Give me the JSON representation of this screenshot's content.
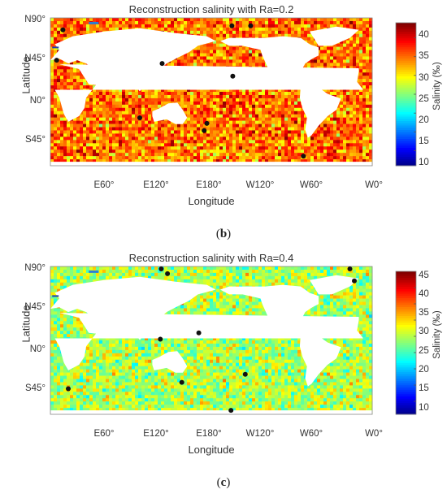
{
  "chart_data": [
    {
      "type": "heatmap",
      "panel_caption": "b",
      "title": "Reconstruction salinity with Ra=0.2",
      "xlabel": "Longitude",
      "ylabel": "Latitude",
      "x_ticks": [
        "E60°",
        "E120°",
        "E180°",
        "W120°",
        "W60°",
        "W0°"
      ],
      "y_ticks": [
        "N90°",
        "N45°",
        "N0°",
        "S45°"
      ],
      "colorbar": {
        "label": "Salinity (‰)",
        "ticks": [
          10,
          15,
          20,
          25,
          30,
          35,
          40
        ],
        "range": [
          6,
          44
        ]
      },
      "field": {
        "mean": 35,
        "spread": 3.5
      },
      "markers": [
        {
          "lon": 14,
          "lat": 80
        },
        {
          "lon": 7,
          "lat": 42
        },
        {
          "lon": 125,
          "lat": 38
        },
        {
          "lon": 203,
          "lat": 85
        },
        {
          "lon": 224,
          "lat": 85
        },
        {
          "lon": 204,
          "lat": 22
        },
        {
          "lon": 100,
          "lat": -30
        },
        {
          "lon": 175,
          "lat": -37
        },
        {
          "lon": 172,
          "lat": -46
        },
        {
          "lon": 283,
          "lat": -78
        }
      ]
    },
    {
      "type": "heatmap",
      "panel_caption": "c",
      "title": "Reconstruction salinity with Ra=0.4",
      "xlabel": "Longitude",
      "ylabel": "Latitude",
      "x_ticks": [
        "E60°",
        "E120°",
        "E180°",
        "W120°",
        "W60°",
        "W0°"
      ],
      "y_ticks": [
        "N90°",
        "N45°",
        "N0°",
        "S45°"
      ],
      "colorbar": {
        "label": "Salinity (‰)",
        "ticks": [
          10,
          15,
          20,
          25,
          30,
          35,
          40,
          45
        ],
        "range": [
          6,
          50
        ]
      },
      "field": {
        "mean": 30,
        "spread": 3.5
      },
      "markers": [
        {
          "lon": 124,
          "lat": 92
        },
        {
          "lon": 131,
          "lat": 86
        },
        {
          "lon": 335,
          "lat": 92
        },
        {
          "lon": 340,
          "lat": 77
        },
        {
          "lon": 166,
          "lat": 12
        },
        {
          "lon": 123,
          "lat": 4
        },
        {
          "lon": 147,
          "lat": -50
        },
        {
          "lon": 218,
          "lat": -40
        },
        {
          "lon": 20,
          "lat": -58
        },
        {
          "lon": 202,
          "lat": -85
        }
      ]
    }
  ]
}
